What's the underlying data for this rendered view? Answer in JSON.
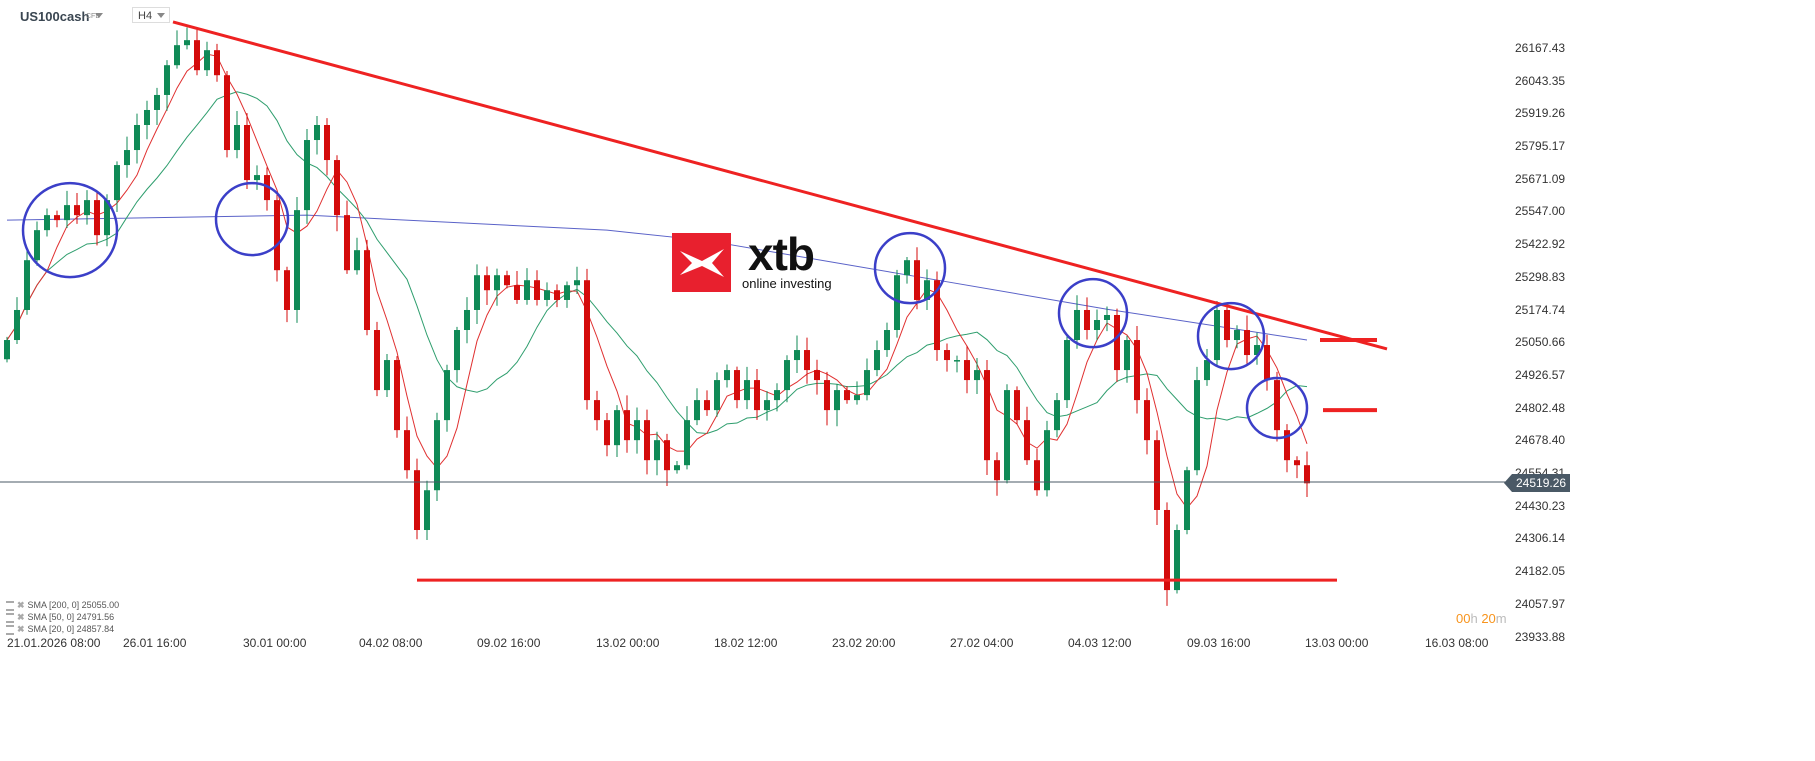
{
  "header": {
    "symbol": "US100cash",
    "instrument_type": "CFD",
    "timeframe": "H4"
  },
  "logo": {
    "brand": "xtb",
    "tagline": "online investing"
  },
  "legend": [
    {
      "label": "SMA [200,  0] 25055.00",
      "color": "#5a62c8"
    },
    {
      "label": "SMA [50,  0] 24791.56",
      "color": "#2f9e6e"
    },
    {
      "label": "SMA [20,  0] 24857.84",
      "color": "#e03030"
    }
  ],
  "timer": {
    "hours": "00",
    "h": "h",
    "minutes": "20",
    "m": "m"
  },
  "chart_data": {
    "type": "candlestick",
    "symbol": "US100cash",
    "timeframe": "H4",
    "colors": {
      "up": "#0f8a56",
      "down": "#d40b0b",
      "trendline": "#ee2222",
      "circle": "#3b3fc8",
      "price_line": "#4a5966"
    },
    "y_ticks": [
      "26167.43",
      "26043.35",
      "25919.26",
      "25795.17",
      "25671.09",
      "25547.00",
      "25422.92",
      "25298.83",
      "25174.74",
      "25050.66",
      "24926.57",
      "24802.48",
      "24678.40",
      "24554.31",
      "24430.23",
      "24306.14",
      "24182.05",
      "24057.97",
      "23933.88"
    ],
    "ylim": [
      23900,
      26270
    ],
    "x_ticks": [
      "21.01.2026  08:00",
      "26.01  16:00",
      "30.01  00:00",
      "04.02  08:00",
      "09.02  16:00",
      "13.02  00:00",
      "18.02  12:00",
      "23.02  20:00",
      "27.02  04:00",
      "04.03  12:00",
      "09.03  16:00",
      "13.03  00:00",
      "16.03  08:00"
    ],
    "current_price": "24519.26",
    "first_open": 24990,
    "closes": [
      25063,
      25177,
      25366,
      25480,
      25537,
      25518,
      25575,
      25537,
      25594,
      25461,
      25594,
      25727,
      25784,
      25879,
      25936,
      25993,
      26106,
      26182,
      26201,
      26087,
      26163,
      26068,
      25784,
      25879,
      25670,
      25689,
      25594,
      25328,
      25177,
      25556,
      25822,
      25879,
      25746,
      25537,
      25328,
      25404,
      25101,
      24873,
      24987,
      24721,
      24569,
      24342,
      24493,
      24759,
      24949,
      25101,
      25177,
      25309,
      25252,
      25309,
      25271,
      25215,
      25290,
      25215,
      25252,
      25215,
      25271,
      25290,
      24835,
      24759,
      24664,
      24797,
      24683,
      24759,
      24607,
      24683,
      24569,
      24588,
      24759,
      24835,
      24797,
      24911,
      24949,
      24835,
      24911,
      24797,
      24835,
      24873,
      24987,
      25025,
      24949,
      24911,
      24797,
      24873,
      24835,
      24854,
      24949,
      25025,
      25101,
      25309,
      25366,
      25215,
      25290,
      25025,
      24987,
      24987,
      24911,
      24949,
      24607,
      24531,
      24873,
      24759,
      24607,
      24493,
      24721,
      24835,
      25063,
      25177,
      25101,
      25139,
      25158,
      24949,
      25063,
      24835,
      24683,
      24418,
      24114,
      24342,
      24569,
      24911,
      24987,
      25177,
      25063,
      25101,
      25006,
      25044,
      24911,
      24721,
      24607,
      24588,
      24519.26
    ],
    "sma200_points": [
      [
        0,
        25518
      ],
      [
        30,
        25537
      ],
      [
        60,
        25480
      ],
      [
        70,
        25440
      ],
      [
        90,
        25310
      ],
      [
        110,
        25180
      ],
      [
        130,
        25063
      ]
    ],
    "drawings": {
      "downtrend": [
        [
          16.6,
          26270
        ],
        [
          138,
          25029
        ]
      ],
      "support": {
        "from": 41,
        "to": 133,
        "price": 24152
      },
      "targets": [
        {
          "from": 131.3,
          "to": 137,
          "price": 25063
        },
        {
          "from": 131.6,
          "to": 137,
          "price": 24797
        }
      ],
      "circles": [
        [
          6.3,
          25480,
          47
        ],
        [
          24.5,
          25522,
          36
        ],
        [
          90.3,
          25336,
          35
        ],
        [
          108.6,
          25165,
          34
        ],
        [
          122.4,
          25078,
          33
        ],
        [
          127,
          24805,
          30
        ]
      ]
    }
  }
}
